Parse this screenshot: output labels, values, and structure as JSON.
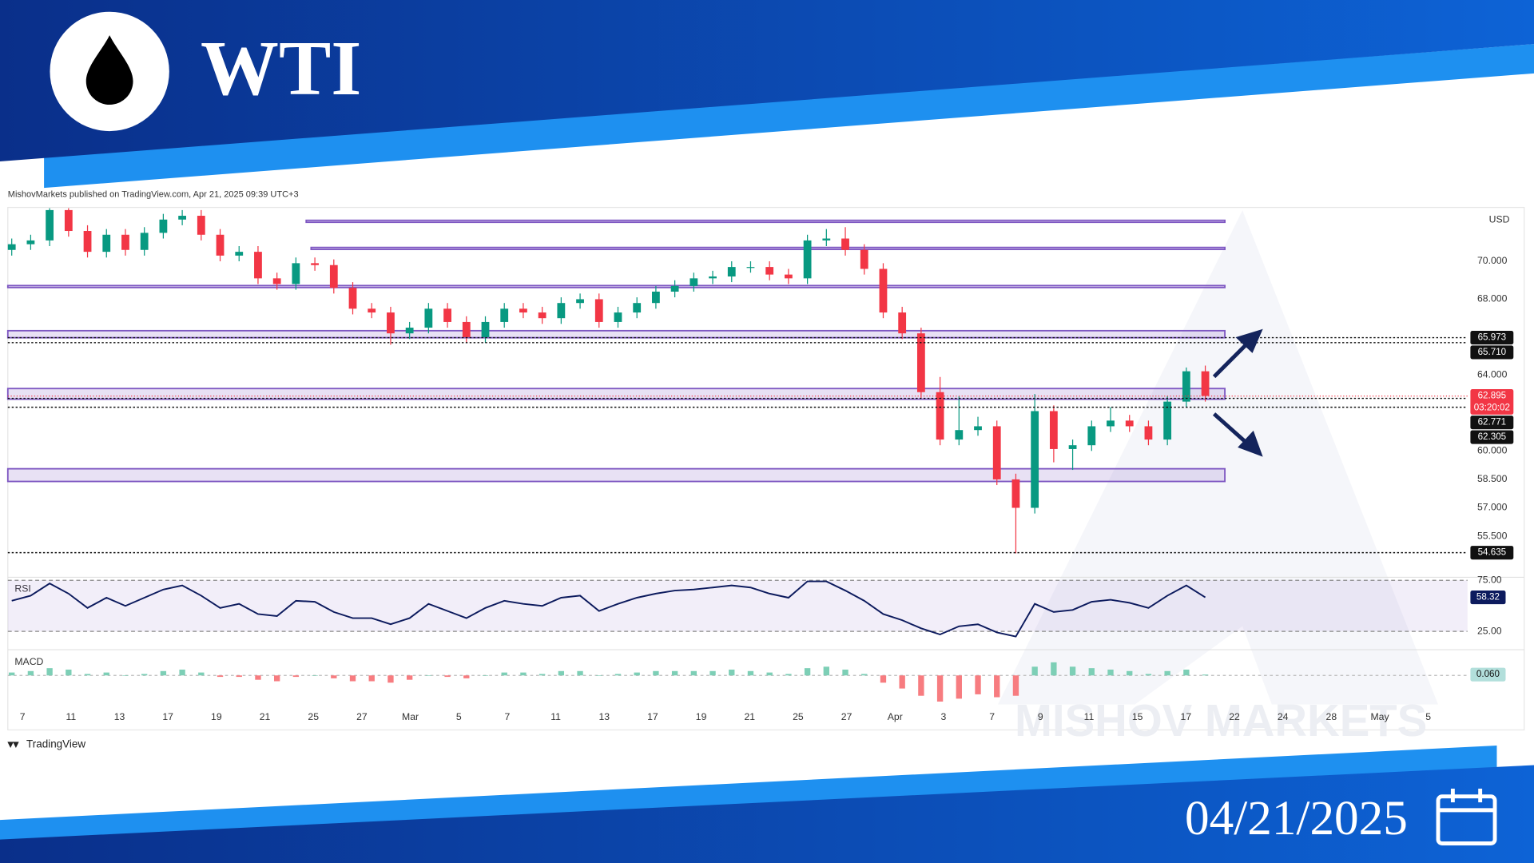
{
  "header": {
    "title": "WTI",
    "date": "04/21/2025"
  },
  "chart_data": {
    "type": "candlestick",
    "attribution": "MishovMarkets published on TradingView.com, Apr 21, 2025 09:39 UTC+3",
    "currency": "USD",
    "brand": "TradingView",
    "watermark": "MISHOV  MARKETS",
    "up_color": "#089981",
    "down_color": "#f23645",
    "open": [
      70.6,
      70.9,
      71.1,
      72.7,
      71.6,
      70.5,
      71.4,
      70.6,
      71.5,
      72.2,
      72.4,
      71.4,
      70.3,
      70.5,
      69.1,
      68.8,
      69.9,
      69.8,
      68.6,
      67.5,
      67.3,
      66.2,
      66.5,
      67.5,
      66.8,
      66.0,
      66.8,
      67.5,
      67.3,
      67.0,
      67.8,
      68.0,
      66.8,
      67.3,
      67.8,
      68.4,
      68.7,
      69.1,
      69.2,
      69.7,
      69.7,
      69.3,
      69.1,
      71.1,
      71.2,
      70.6,
      69.6,
      67.3,
      66.2,
      63.1,
      60.6,
      61.1,
      61.3,
      58.5,
      57.0,
      62.1,
      60.1,
      60.3,
      61.3,
      61.6,
      61.3,
      60.6,
      62.6,
      64.2
    ],
    "high": [
      71.2,
      71.4,
      72.8,
      72.8,
      71.9,
      71.7,
      71.7,
      71.8,
      72.5,
      72.7,
      72.7,
      71.7,
      70.8,
      70.8,
      69.4,
      70.2,
      70.2,
      70.1,
      68.9,
      67.8,
      67.6,
      66.8,
      67.8,
      67.8,
      67.1,
      67.1,
      67.8,
      67.8,
      67.6,
      68.1,
      68.3,
      68.3,
      67.6,
      68.1,
      68.7,
      69.0,
      69.4,
      69.5,
      70.0,
      70.0,
      70.0,
      69.6,
      71.4,
      71.7,
      71.8,
      70.9,
      69.9,
      67.6,
      66.5,
      63.9,
      62.9,
      61.8,
      61.6,
      58.8,
      63.0,
      62.4,
      60.6,
      61.6,
      62.3,
      61.9,
      61.6,
      62.9,
      64.4,
      64.5
    ],
    "low": [
      70.3,
      70.6,
      70.8,
      71.3,
      70.2,
      70.2,
      70.3,
      70.3,
      71.2,
      71.9,
      71.1,
      70.0,
      70.0,
      68.8,
      68.5,
      68.5,
      69.5,
      68.3,
      67.2,
      67.0,
      65.6,
      65.9,
      66.2,
      66.5,
      65.7,
      65.7,
      66.5,
      67.0,
      66.7,
      66.7,
      67.5,
      66.5,
      66.5,
      67.0,
      67.5,
      68.1,
      68.4,
      68.8,
      68.9,
      69.4,
      69.0,
      68.8,
      68.8,
      70.8,
      70.3,
      69.3,
      67.0,
      65.9,
      62.8,
      60.3,
      60.3,
      60.8,
      58.2,
      54.6,
      56.7,
      59.4,
      59.0,
      60.0,
      61.0,
      61.0,
      60.3,
      60.3,
      62.3,
      62.6
    ],
    "close": [
      70.9,
      71.1,
      72.7,
      71.6,
      70.5,
      71.4,
      70.6,
      71.5,
      72.2,
      72.4,
      71.4,
      70.3,
      70.5,
      69.1,
      68.8,
      69.9,
      69.8,
      68.6,
      67.5,
      67.3,
      66.2,
      66.5,
      67.5,
      66.8,
      66.0,
      66.8,
      67.5,
      67.3,
      67.0,
      67.8,
      68.0,
      66.8,
      67.3,
      67.8,
      68.4,
      68.7,
      69.1,
      69.2,
      69.7,
      69.7,
      69.3,
      69.1,
      71.1,
      71.2,
      70.6,
      69.6,
      67.3,
      66.2,
      63.1,
      60.6,
      61.1,
      61.3,
      58.5,
      57.0,
      62.1,
      60.1,
      60.3,
      61.3,
      61.6,
      61.3,
      60.6,
      62.6,
      64.2,
      62.9
    ],
    "categories": [
      "7",
      "11",
      "13",
      "17",
      "19",
      "21",
      "25",
      "27",
      "Mar",
      "5",
      "7",
      "11",
      "13",
      "17",
      "19",
      "21",
      "25",
      "27",
      "Apr",
      "3",
      "7",
      "9",
      "11",
      "15",
      "17",
      "22",
      "24",
      "28",
      "May",
      "5"
    ],
    "ylim": [
      53.44,
      72.84
    ],
    "yticks": [
      {
        "value": 70,
        "label": "70.000"
      },
      {
        "value": 68,
        "label": "68.000"
      },
      {
        "value": 64,
        "label": "64.000"
      },
      {
        "value": 60,
        "label": "60.000"
      },
      {
        "value": 58.5,
        "label": "58.500"
      },
      {
        "value": 57,
        "label": "57.000"
      },
      {
        "value": 55.5,
        "label": "55.500"
      }
    ],
    "zones": [
      [
        72.06,
        72.16
      ],
      [
        70.63,
        70.73
      ],
      [
        68.62,
        68.72
      ],
      [
        65.97,
        66.34
      ],
      [
        62.73,
        63.29
      ],
      [
        58.39,
        59.06
      ]
    ],
    "zone_color": "#7e57c2",
    "levels": [
      65.973,
      {
        "value": 65.71,
        "label": "65.710"
      },
      62.771,
      62.305,
      54.635
    ],
    "current": {
      "price": 62.895,
      "countdown": "03:20:02",
      "color": "#f23645"
    },
    "rsi": {
      "label": "RSI",
      "color": "#0d1b5e",
      "ylim": [
        9,
        78
      ],
      "yticks": [
        {
          "value": 75,
          "label": "75.00"
        },
        {
          "value": 25,
          "label": "25.00"
        }
      ],
      "values": [
        55,
        60,
        72,
        62,
        48,
        58,
        50,
        58,
        66,
        70,
        60,
        48,
        52,
        42,
        40,
        55,
        54,
        44,
        38,
        38,
        32,
        38,
        52,
        45,
        38,
        48,
        55,
        52,
        50,
        58,
        60,
        45,
        52,
        58,
        62,
        65,
        66,
        68,
        70,
        68,
        62,
        58,
        74,
        74,
        65,
        55,
        42,
        36,
        28,
        22,
        30,
        32,
        24,
        20,
        52,
        44,
        46,
        54,
        56,
        53,
        48,
        60,
        70,
        58.32
      ]
    },
    "macd": {
      "label": "MACD",
      "ylim": [
        -2,
        1.5
      ],
      "values": [
        0.2,
        0.3,
        0.5,
        0.4,
        0.1,
        0.2,
        0.0,
        0.1,
        0.3,
        0.4,
        0.2,
        -0.1,
        -0.1,
        -0.3,
        -0.4,
        -0.1,
        0.0,
        -0.2,
        -0.4,
        -0.4,
        -0.5,
        -0.3,
        0.0,
        -0.1,
        -0.2,
        0.0,
        0.2,
        0.2,
        0.1,
        0.3,
        0.3,
        0.0,
        0.1,
        0.2,
        0.3,
        0.3,
        0.3,
        0.3,
        0.4,
        0.3,
        0.2,
        0.1,
        0.5,
        0.6,
        0.4,
        0.1,
        -0.5,
        -0.9,
        -1.4,
        -1.8,
        -1.6,
        -1.3,
        -1.5,
        -1.4,
        0.6,
        0.9,
        0.6,
        0.5,
        0.4,
        0.3,
        0.1,
        0.3,
        0.4,
        0.06
      ],
      "last": {
        "value": 0.06,
        "label": "0.060"
      }
    }
  }
}
